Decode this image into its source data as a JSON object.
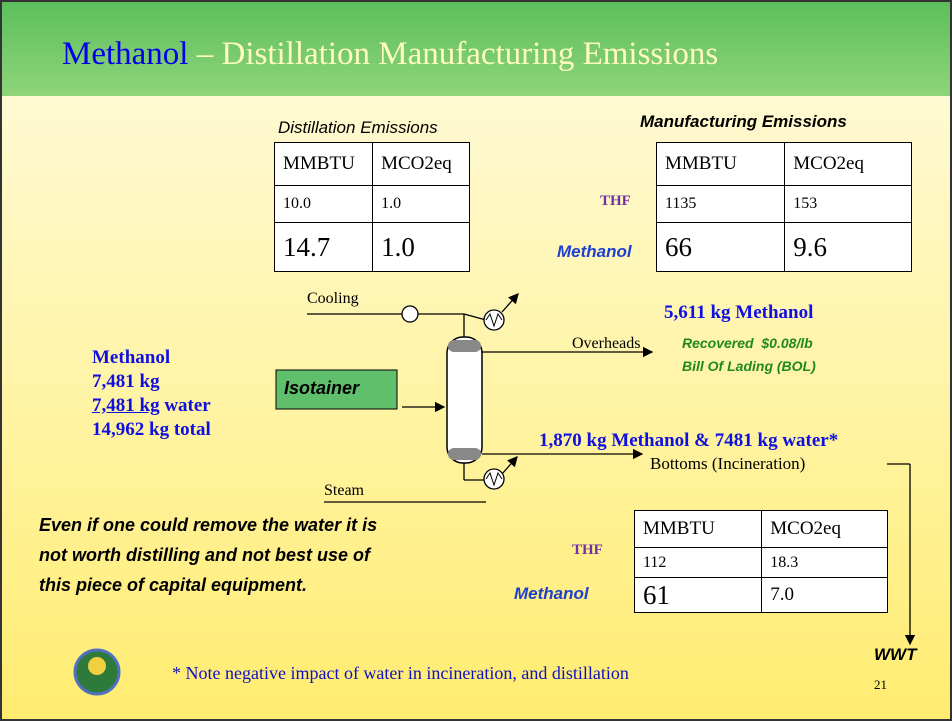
{
  "header": {
    "title_main": "Methanol",
    "title_rest": "– Distillation Manufacturing Emissions"
  },
  "distillation_table": {
    "caption": "Distillation Emissions",
    "columns": [
      "MMBTU",
      "MCO2eq"
    ],
    "rows": [
      [
        "10.0",
        "1.0"
      ],
      [
        "14.7",
        "1.0"
      ]
    ]
  },
  "manufacturing_table": {
    "caption": "Manufacturing Emissions",
    "columns": [
      "MMBTU",
      "MCO2eq"
    ],
    "rows": [
      {
        "label": "THF",
        "cells": [
          "1135",
          "153"
        ]
      },
      {
        "label": "Methanol",
        "cells": [
          "66",
          "9.6"
        ]
      }
    ]
  },
  "bottoms_table": {
    "columns": [
      "MMBTU",
      "MCO2eq"
    ],
    "rows": [
      {
        "label": "THF",
        "cells": [
          "112",
          "18.3"
        ]
      },
      {
        "label": "Methanol",
        "cells": [
          "61",
          "7.0"
        ]
      }
    ]
  },
  "diagram": {
    "cooling": "Cooling",
    "overheads": "Overheads",
    "steam": "Steam",
    "isotainer": "Isotainer",
    "bottoms": "Bottoms (Incineration)",
    "wwt": "WWT"
  },
  "feed": {
    "name": "Methanol",
    "mass": "7,481 kg",
    "water_mass": "7,481 kg",
    "water_label": "water",
    "total": "14,962 kg total"
  },
  "overheads_stream": {
    "amount": "5,611 kg Methanol",
    "recovered": "Recovered  $0.08/lb",
    "bol": "Bill Of Lading (BOL)"
  },
  "bottoms_stream": "1,870 kg Methanol & 7481 kg water*",
  "remark": [
    "Even if one could remove the water it is",
    "not worth distilling and not best use of",
    "this piece of capital equipment."
  ],
  "footnote": "* Note negative impact of water in incineration, and distillation",
  "page_number": "21"
}
